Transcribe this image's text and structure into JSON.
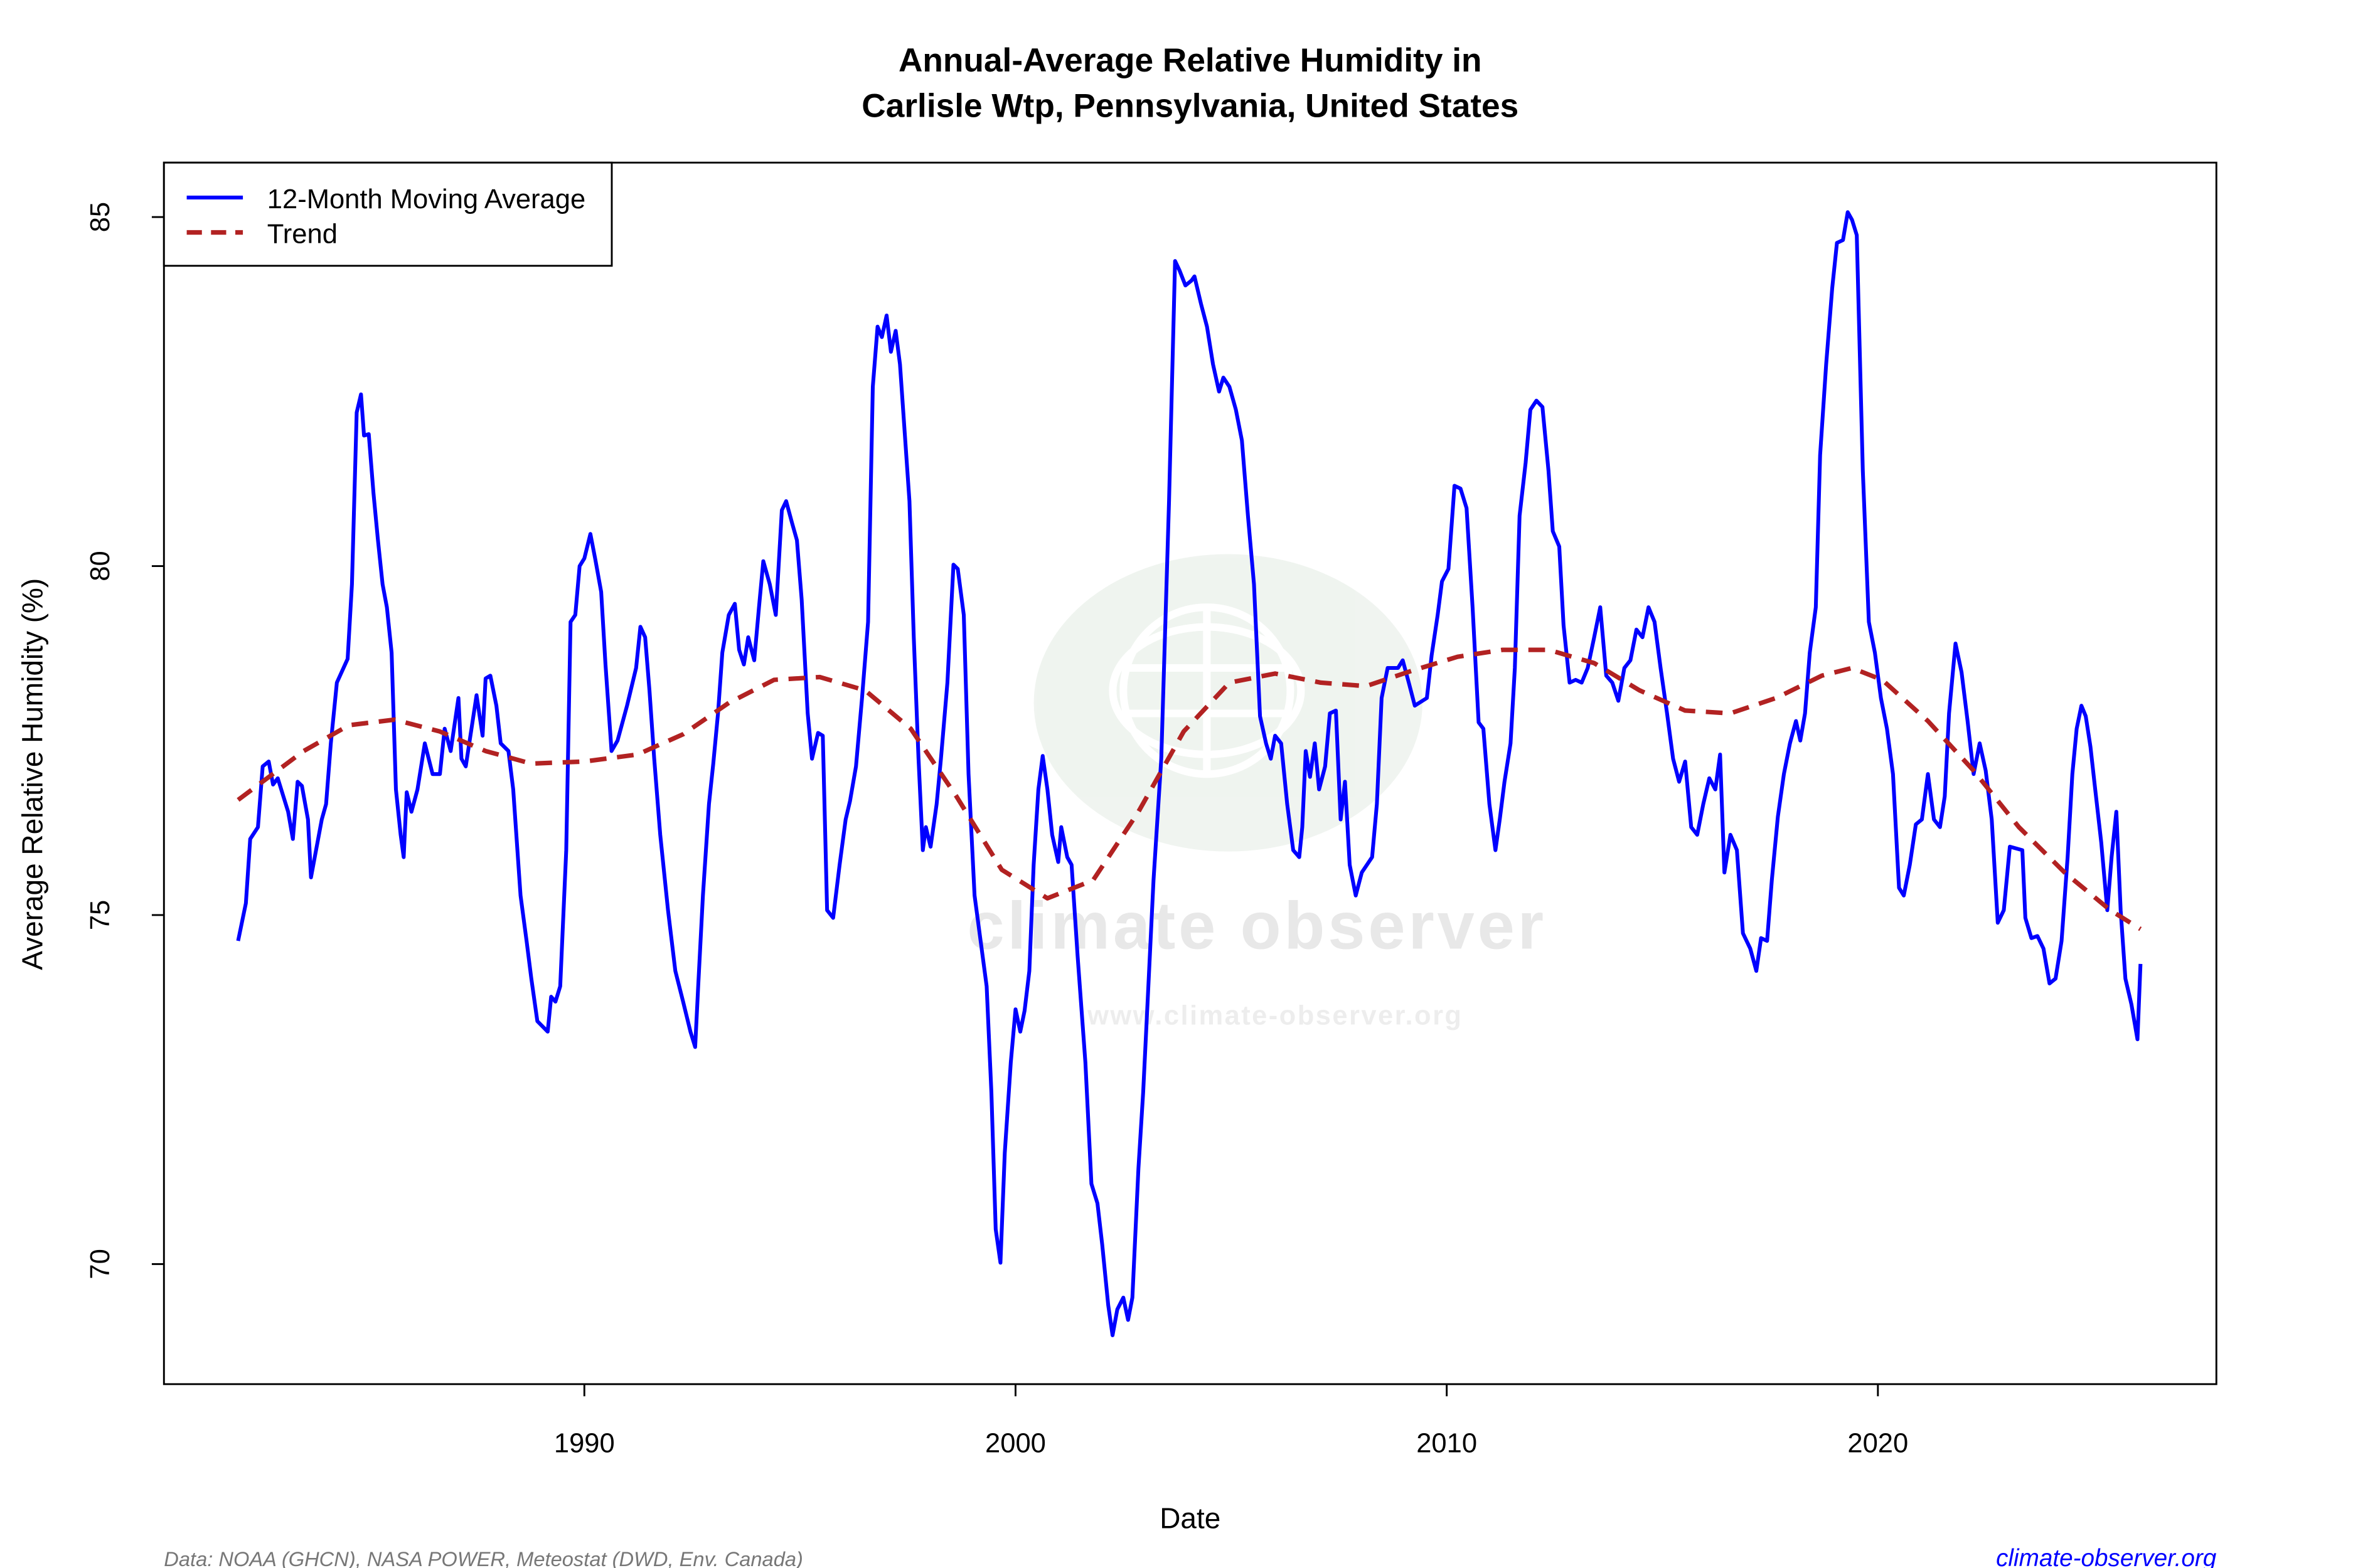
{
  "chart_data": {
    "type": "line",
    "title": "Annual-Average Relative Humidity in",
    "subtitle": "Carlisle Wtp, Pennsylvania, United States",
    "xlabel": "Date",
    "ylabel": "Average Relative Humidity (%)",
    "xlim": [
      1980.25,
      2027.85
    ],
    "ylim": [
      68.28,
      85.78
    ],
    "x_ticks": [
      1990,
      2000,
      2010,
      2020
    ],
    "x_tick_labels": [
      "1990",
      "2000",
      "2010",
      "2020"
    ],
    "y_ticks": [
      70,
      75,
      80,
      85
    ],
    "y_tick_labels": [
      "70",
      "75",
      "80",
      "85"
    ],
    "grid": false,
    "legend_position": "top-left",
    "colors": {
      "moving_average": "#0000ff",
      "trend": "#b22222"
    },
    "series": [
      {
        "name": "12-Month Moving Average",
        "style": "solid",
        "x": [
          1981.97,
          1982.15,
          1982.25,
          1982.43,
          1982.54,
          1982.68,
          1982.78,
          1982.89,
          1983.13,
          1983.24,
          1983.35,
          1983.45,
          1983.59,
          1983.66,
          1983.91,
          1984.01,
          1984.12,
          1984.26,
          1984.51,
          1984.61,
          1984.72,
          1984.82,
          1984.89,
          1985.0,
          1985.11,
          1985.21,
          1985.32,
          1985.42,
          1985.53,
          1985.63,
          1985.74,
          1985.81,
          1985.88,
          1985.99,
          1986.13,
          1986.3,
          1986.48,
          1986.65,
          1986.76,
          1986.9,
          1987.08,
          1987.15,
          1987.25,
          1987.5,
          1987.64,
          1987.71,
          1987.82,
          1987.96,
          1988.06,
          1988.24,
          1988.35,
          1988.52,
          1988.66,
          1988.77,
          1988.91,
          1989.15,
          1989.23,
          1989.33,
          1989.44,
          1989.58,
          1989.68,
          1989.79,
          1989.89,
          1990.0,
          1990.14,
          1990.25,
          1990.39,
          1990.49,
          1990.63,
          1990.77,
          1990.99,
          1991.2,
          1991.3,
          1991.41,
          1991.51,
          1991.62,
          1991.76,
          1991.94,
          1992.11,
          1992.29,
          1992.46,
          1992.57,
          1992.64,
          1992.75,
          1992.89,
          1992.99,
          1993.1,
          1993.2,
          1993.35,
          1993.49,
          1993.59,
          1993.7,
          1993.8,
          1993.94,
          1994.05,
          1994.15,
          1994.3,
          1994.44,
          1994.58,
          1994.68,
          1994.82,
          1994.93,
          1995.04,
          1995.18,
          1995.28,
          1995.42,
          1995.53,
          1995.63,
          1995.77,
          1995.92,
          1996.06,
          1996.16,
          1996.3,
          1996.44,
          1996.58,
          1996.69,
          1996.8,
          1996.9,
          1997.01,
          1997.11,
          1997.22,
          1997.32,
          1997.43,
          1997.54,
          1997.64,
          1997.75,
          1997.85,
          1997.92,
          1998.03,
          1998.17,
          1998.27,
          1998.42,
          1998.56,
          1998.66,
          1998.8,
          1998.91,
          1999.05,
          1999.19,
          1999.33,
          1999.44,
          1999.54,
          1999.65,
          1999.75,
          1999.89,
          2000.0,
          2000.11,
          2000.21,
          2000.32,
          2000.42,
          2000.53,
          2000.63,
          2000.74,
          2000.85,
          2000.99,
          2001.06,
          2001.2,
          2001.3,
          2001.44,
          2001.62,
          2001.76,
          2001.9,
          2002.01,
          2002.15,
          2002.25,
          2002.36,
          2002.5,
          2002.61,
          2002.71,
          2002.85,
          2002.96,
          2003.06,
          2003.2,
          2003.38,
          2003.56,
          2003.7,
          2003.8,
          2003.94,
          2004.08,
          2004.15,
          2004.3,
          2004.44,
          2004.58,
          2004.72,
          2004.82,
          2004.96,
          2005.11,
          2005.25,
          2005.39,
          2005.53,
          2005.67,
          2005.81,
          2005.92,
          2006.02,
          2006.16,
          2006.3,
          2006.44,
          2006.58,
          2006.65,
          2006.73,
          2006.83,
          2006.94,
          2007.04,
          2007.18,
          2007.29,
          2007.43,
          2007.54,
          2007.64,
          2007.75,
          2007.89,
          2008.03,
          2008.27,
          2008.38,
          2008.49,
          2008.63,
          2008.87,
          2008.98,
          2009.12,
          2009.26,
          2009.54,
          2009.65,
          2009.79,
          2009.89,
          2010.04,
          2010.18,
          2010.32,
          2010.46,
          2010.6,
          2010.74,
          2010.85,
          2010.99,
          2011.13,
          2011.23,
          2011.34,
          2011.48,
          2011.58,
          2011.69,
          2011.83,
          2011.94,
          2012.08,
          2012.22,
          2012.36,
          2012.46,
          2012.61,
          2012.71,
          2012.85,
          2012.99,
          2013.13,
          2013.27,
          2013.42,
          2013.56,
          2013.7,
          2013.84,
          2013.98,
          2014.12,
          2014.26,
          2014.4,
          2014.54,
          2014.68,
          2014.82,
          2014.96,
          2015.11,
          2015.25,
          2015.39,
          2015.53,
          2015.67,
          2015.81,
          2015.95,
          2016.09,
          2016.23,
          2016.34,
          2016.44,
          2016.58,
          2016.73,
          2016.87,
          2017.04,
          2017.18,
          2017.29,
          2017.43,
          2017.54,
          2017.68,
          2017.82,
          2017.96,
          2018.1,
          2018.2,
          2018.31,
          2018.42,
          2018.56,
          2018.66,
          2018.8,
          2018.94,
          2019.05,
          2019.19,
          2019.3,
          2019.4,
          2019.51,
          2019.65,
          2019.79,
          2019.93,
          2020.07,
          2020.21,
          2020.35,
          2020.49,
          2020.6,
          2020.74,
          2020.88,
          2021.02,
          2021.16,
          2021.3,
          2021.44,
          2021.55,
          2021.65,
          2021.8,
          2021.94,
          2022.08,
          2022.22,
          2022.36,
          2022.5,
          2022.64,
          2022.78,
          2022.92,
          2023.06,
          2023.35,
          2023.42,
          2023.56,
          2023.7,
          2023.84,
          2023.98,
          2024.12,
          2024.26,
          2024.4,
          2024.51,
          2024.61,
          2024.72,
          2024.82,
          2024.93,
          2025.04,
          2025.18,
          2025.32,
          2025.42,
          2025.53,
          2025.63,
          2025.74,
          2025.88,
          2026.02,
          2026.09
        ],
        "y": [
          74.63,
          75.17,
          76.09,
          76.26,
          77.13,
          77.2,
          76.87,
          76.96,
          76.48,
          76.09,
          76.91,
          76.85,
          76.37,
          75.54,
          76.37,
          76.59,
          77.46,
          78.33,
          78.67,
          79.74,
          82.2,
          82.46,
          81.87,
          81.89,
          81.04,
          80.39,
          79.74,
          79.41,
          78.76,
          76.8,
          76.15,
          75.83,
          76.76,
          76.48,
          76.8,
          77.46,
          77.02,
          77.02,
          77.67,
          77.35,
          78.11,
          77.24,
          77.13,
          78.15,
          77.57,
          78.39,
          78.43,
          78.0,
          77.46,
          77.35,
          76.8,
          75.28,
          74.63,
          74.09,
          73.48,
          73.33,
          73.83,
          73.76,
          73.98,
          75.93,
          79.2,
          79.3,
          80.0,
          80.11,
          80.46,
          80.11,
          79.63,
          78.59,
          77.35,
          77.5,
          78.0,
          78.54,
          79.13,
          78.98,
          78.22,
          77.24,
          76.15,
          75.07,
          74.2,
          73.76,
          73.33,
          73.11,
          73.98,
          75.28,
          76.59,
          77.17,
          77.89,
          78.76,
          79.3,
          79.46,
          78.8,
          78.59,
          78.98,
          78.65,
          79.41,
          80.07,
          79.74,
          79.3,
          80.8,
          80.93,
          80.61,
          80.37,
          79.52,
          77.89,
          77.24,
          77.61,
          77.57,
          75.07,
          74.96,
          75.72,
          76.37,
          76.63,
          77.13,
          78.11,
          79.2,
          82.57,
          83.43,
          83.28,
          83.59,
          83.07,
          83.37,
          82.89,
          81.91,
          80.93,
          78.98,
          77.24,
          75.93,
          76.26,
          75.98,
          76.59,
          77.24,
          78.33,
          80.02,
          79.96,
          79.3,
          77.02,
          75.28,
          74.63,
          73.98,
          72.46,
          70.5,
          70.02,
          71.59,
          72.89,
          73.65,
          73.33,
          73.63,
          74.2,
          75.72,
          76.8,
          77.28,
          76.8,
          76.15,
          75.76,
          76.26,
          75.83,
          75.72,
          74.41,
          72.89,
          71.15,
          70.87,
          70.28,
          69.41,
          68.98,
          69.35,
          69.52,
          69.2,
          69.52,
          71.37,
          72.46,
          73.72,
          75.5,
          77.24,
          80.93,
          84.37,
          84.24,
          84.02,
          84.09,
          84.15,
          83.76,
          83.43,
          82.89,
          82.5,
          82.7,
          82.57,
          82.24,
          81.8,
          80.72,
          79.74,
          77.85,
          77.46,
          77.24,
          77.57,
          77.46,
          76.59,
          75.93,
          75.83,
          76.26,
          77.35,
          76.98,
          77.46,
          76.8,
          77.13,
          77.89,
          77.93,
          76.37,
          76.91,
          75.72,
          75.28,
          75.61,
          75.83,
          76.59,
          78.11,
          78.54,
          78.54,
          78.65,
          78.33,
          78.0,
          78.11,
          78.72,
          79.3,
          79.78,
          79.96,
          81.15,
          81.11,
          80.83,
          79.41,
          77.76,
          77.67,
          76.59,
          75.93,
          76.37,
          76.91,
          77.46,
          78.54,
          80.72,
          81.48,
          82.24,
          82.37,
          82.28,
          81.37,
          80.5,
          80.28,
          79.15,
          78.33,
          78.37,
          78.33,
          78.54,
          78.98,
          79.41,
          78.43,
          78.33,
          78.07,
          78.54,
          78.65,
          79.09,
          78.98,
          79.41,
          79.2,
          78.54,
          77.89,
          77.24,
          76.91,
          77.2,
          76.26,
          76.15,
          76.59,
          76.96,
          76.8,
          77.3,
          75.61,
          76.15,
          75.93,
          74.74,
          74.52,
          74.2,
          74.67,
          74.63,
          75.5,
          76.41,
          77.02,
          77.46,
          77.78,
          77.5,
          77.89,
          78.76,
          79.41,
          81.59,
          82.89,
          83.98,
          84.63,
          84.67,
          85.07,
          84.96,
          84.74,
          81.37,
          79.2,
          78.76,
          78.11,
          77.67,
          77.02,
          75.39,
          75.28,
          75.72,
          76.3,
          76.37,
          77.02,
          76.37,
          76.26,
          76.7,
          77.89,
          78.89,
          78.48,
          77.78,
          77.02,
          77.46,
          77.07,
          76.37,
          74.89,
          75.07,
          75.98,
          75.93,
          74.96,
          74.67,
          74.7,
          74.52,
          74.02,
          74.09,
          74.63,
          75.83,
          77.02,
          77.67,
          78.0,
          77.85,
          77.41,
          76.8,
          76.04,
          75.07,
          75.83,
          76.48,
          75.07,
          74.09,
          73.72,
          73.22,
          74.3
        ]
      },
      {
        "name": "Trend",
        "style": "dashed",
        "x": [
          1981.97,
          1983.49,
          1984.54,
          1985.6,
          1986.65,
          1987.71,
          1988.77,
          1990.0,
          1991.23,
          1992.29,
          1993.35,
          1994.4,
          1995.46,
          1996.51,
          1997.57,
          1998.63,
          1999.68,
          2000.74,
          2001.8,
          2002.85,
          2003.9,
          2004.96,
          2006.02,
          2007.08,
          2008.13,
          2009.19,
          2010.25,
          2011.3,
          2012.36,
          2013.42,
          2014.47,
          2015.53,
          2016.58,
          2017.64,
          2018.7,
          2019.4,
          2020.1,
          2021.16,
          2022.22,
          2023.27,
          2024.33,
          2025.39,
          2026.09
        ],
        "y": [
          76.65,
          77.35,
          77.72,
          77.8,
          77.63,
          77.35,
          77.17,
          77.2,
          77.3,
          77.59,
          78.04,
          78.37,
          78.41,
          78.22,
          77.67,
          76.7,
          75.65,
          75.24,
          75.5,
          76.48,
          77.63,
          78.33,
          78.46,
          78.33,
          78.28,
          78.5,
          78.7,
          78.8,
          78.8,
          78.61,
          78.22,
          77.93,
          77.89,
          78.11,
          78.43,
          78.54,
          78.37,
          77.78,
          77.07,
          76.26,
          75.61,
          75.07,
          74.8
        ]
      }
    ]
  },
  "footer": {
    "source": "Data: NOAA (GHCN), NASA POWER, Meteostat (DWD, Env. Canada)",
    "site": "climate-observer.org"
  },
  "watermark": {
    "brand": "climate observer",
    "url": "www.climate-observer.org"
  }
}
